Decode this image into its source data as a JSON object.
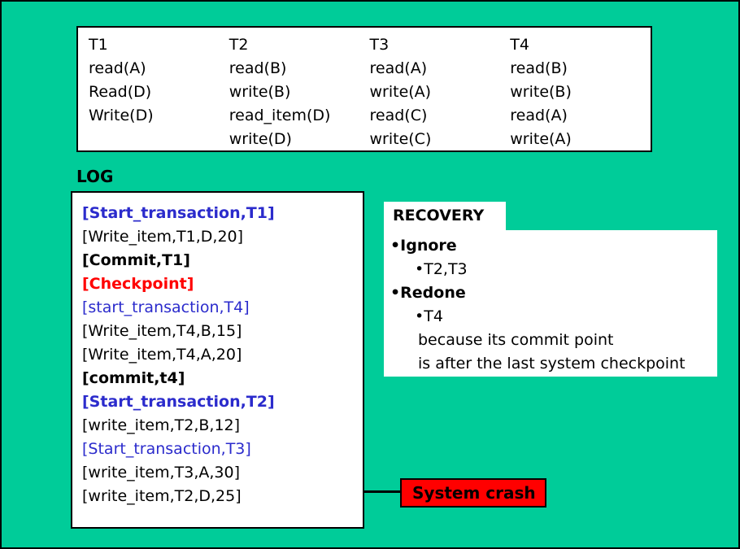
{
  "colors": {
    "background": "#00CC99",
    "blue": "#2B2BCC",
    "red": "#FF0000",
    "crash": "#FF0000",
    "black": "#000000"
  },
  "transactions": {
    "columns": [
      {
        "header": "T1",
        "ops": [
          "read(A)",
          "Read(D)",
          "Write(D)"
        ]
      },
      {
        "header": "T2",
        "ops": [
          "read(B)",
          "write(B)",
          "read_item(D)",
          "write(D)"
        ]
      },
      {
        "header": "T3",
        "ops": [
          "read(A)",
          "write(A)",
          "read(C)",
          "write(C)"
        ]
      },
      {
        "header": "T4",
        "ops": [
          "read(B)",
          "write(B)",
          "read(A)",
          "write(A)"
        ]
      }
    ]
  },
  "log": {
    "title": "LOG",
    "entries": [
      {
        "text": "[Start_transaction,T1]",
        "color": "blue",
        "bold": true
      },
      {
        "text": "[Write_item,T1,D,20]",
        "color": "black",
        "bold": false
      },
      {
        "text": "[Commit,T1]",
        "color": "black",
        "bold": true
      },
      {
        "text": "[Checkpoint]",
        "color": "red",
        "bold": true
      },
      {
        "text": "[start_transaction,T4]",
        "color": "blue",
        "bold": false
      },
      {
        "text": "[Write_item,T4,B,15]",
        "color": "black",
        "bold": false
      },
      {
        "text": "[Write_item,T4,A,20]",
        "color": "black",
        "bold": false
      },
      {
        "text": "[commit,t4]",
        "color": "black",
        "bold": true
      },
      {
        "text": "[Start_transaction,T2]",
        "color": "blue",
        "bold": true
      },
      {
        "text": "[write_item,T2,B,12]",
        "color": "black",
        "bold": false
      },
      {
        "text": "[Start_transaction,T3]",
        "color": "blue",
        "bold": false
      },
      {
        "text": "[write_item,T3,A,30]",
        "color": "black",
        "bold": false
      },
      {
        "text": "[write_item,T2,D,25]",
        "color": "black",
        "bold": false
      }
    ]
  },
  "recovery": {
    "title": "RECOVERY",
    "items": [
      "•Ignore",
      "•T2,T3",
      "•Redone",
      "•T4",
      "because its commit point",
      "is after the last system checkpoint"
    ]
  },
  "crash": {
    "label": "System crash"
  }
}
